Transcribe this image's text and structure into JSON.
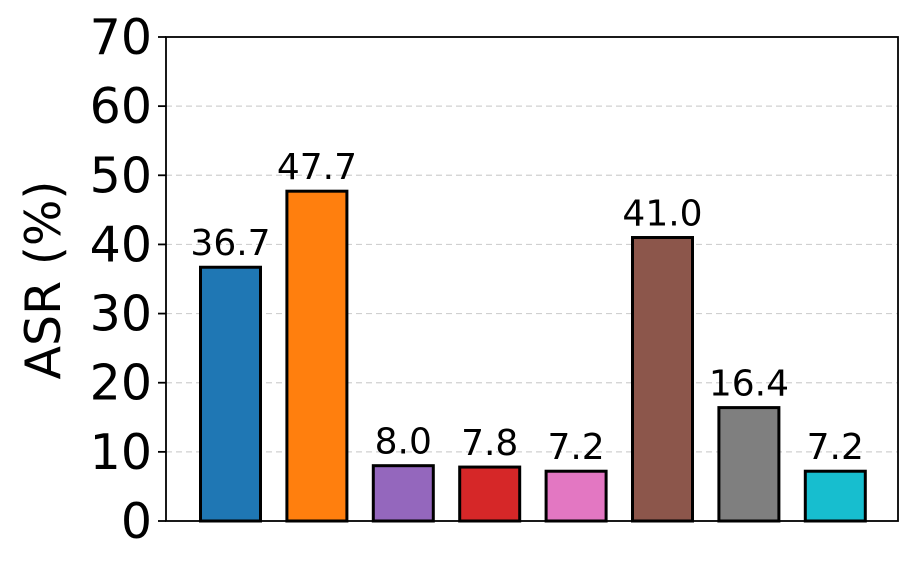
{
  "chart_data": {
    "type": "bar",
    "title": "",
    "xlabel": "",
    "ylabel": "ASR (%)",
    "ylim": [
      0,
      70
    ],
    "yticks": [
      0,
      10,
      20,
      30,
      40,
      50,
      60,
      70
    ],
    "grid": "horizontal dashed",
    "values": [
      36.7,
      47.7,
      8.0,
      7.8,
      7.2,
      41.0,
      16.4,
      7.2
    ],
    "value_labels": [
      "36.7",
      "47.7",
      "8.0",
      "7.8",
      "7.2",
      "41.0",
      "16.4",
      "7.2"
    ],
    "colors": [
      "#1f77b4",
      "#ff7f0e",
      "#9467bd",
      "#d62728",
      "#e377c2",
      "#8c564b",
      "#7f7f7f",
      "#17becf"
    ]
  }
}
